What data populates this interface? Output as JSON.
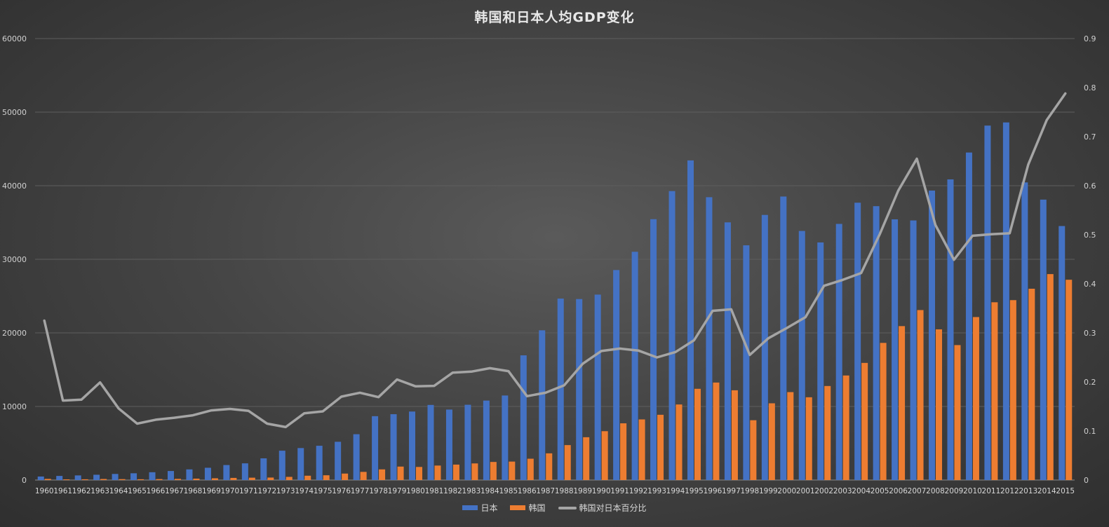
{
  "chart_data": {
    "type": "bar",
    "title": "韩国和日本人均GDP变化",
    "categories": [
      "1960",
      "1961",
      "1962",
      "1963",
      "1964",
      "1965",
      "1966",
      "1967",
      "1968",
      "1969",
      "1970",
      "1971",
      "1972",
      "1973",
      "1974",
      "1975",
      "1976",
      "1977",
      "1978",
      "1979",
      "1980",
      "1981",
      "1982",
      "1983",
      "1984",
      "1985",
      "1986",
      "1987",
      "1988",
      "1989",
      "1990",
      "1991",
      "1992",
      "1993",
      "1994",
      "1995",
      "1996",
      "1997",
      "1998",
      "1999",
      "2000",
      "2001",
      "2002",
      "2003",
      "2004",
      "2005",
      "2006",
      "2007",
      "2008",
      "2009",
      "2010",
      "2011",
      "2012",
      "2013",
      "2014",
      "2015"
    ],
    "series": [
      {
        "name": "日本",
        "axis": "left",
        "color": "#4472c4",
        "values": [
          480,
          560,
          630,
          720,
          830,
          920,
          1060,
          1230,
          1450,
          1670,
          2040,
          2270,
          2950,
          3990,
          4350,
          4660,
          5200,
          6230,
          8680,
          8950,
          9310,
          10210,
          9580,
          10230,
          10800,
          11490,
          16950,
          20350,
          24660,
          24600,
          25200,
          28540,
          31020,
          35450,
          39270,
          43440,
          38440,
          35020,
          31900,
          36030,
          38530,
          33850,
          32290,
          34810,
          37690,
          37220,
          35430,
          35280,
          39340,
          40860,
          44510,
          48170,
          48600,
          40450,
          38110,
          34520
        ]
      },
      {
        "name": "韩国",
        "axis": "left",
        "color": "#ed7d31",
        "values": [
          156,
          92,
          106,
          144,
          123,
          108,
          130,
          160,
          194,
          242,
          292,
          322,
          339,
          432,
          590,
          650,
          880,
          1110,
          1450,
          1830,
          1780,
          1970,
          2100,
          2260,
          2460,
          2510,
          2900,
          3630,
          4750,
          5820,
          6640,
          7710,
          8240,
          8870,
          10270,
          12400,
          13250,
          12200,
          8130,
          10430,
          11950,
          11250,
          12780,
          14210,
          15920,
          18640,
          20920,
          23100,
          20480,
          18340,
          22150,
          24160,
          24450,
          26000,
          27990,
          27220
        ]
      },
      {
        "name": "韩国对日本百分比",
        "axis": "right",
        "type": "line",
        "color": "#a5a5a5",
        "values": [
          0.325,
          0.162,
          0.164,
          0.199,
          0.146,
          0.115,
          0.123,
          0.127,
          0.132,
          0.142,
          0.145,
          0.141,
          0.115,
          0.108,
          0.136,
          0.14,
          0.17,
          0.178,
          0.169,
          0.205,
          0.191,
          0.192,
          0.219,
          0.221,
          0.228,
          0.222,
          0.171,
          0.178,
          0.193,
          0.237,
          0.263,
          0.268,
          0.264,
          0.25,
          0.261,
          0.285,
          0.345,
          0.348,
          0.255,
          0.289,
          0.31,
          0.332,
          0.396,
          0.408,
          0.422,
          0.501,
          0.59,
          0.655,
          0.52,
          0.449,
          0.498,
          0.501,
          0.503,
          0.643,
          0.734,
          0.788
        ]
      }
    ],
    "left_axis": {
      "min": 0,
      "max": 60000,
      "ticks": [
        "0",
        "10000",
        "20000",
        "30000",
        "40000",
        "50000",
        "60000"
      ]
    },
    "right_axis": {
      "min": 0,
      "max": 0.9,
      "ticks": [
        "0",
        "0.1",
        "0.2",
        "0.3",
        "0.4",
        "0.5",
        "0.6",
        "0.7",
        "0.8",
        "0.9"
      ]
    },
    "grid": true,
    "legend_position": "bottom",
    "background": "dark-gradient"
  }
}
